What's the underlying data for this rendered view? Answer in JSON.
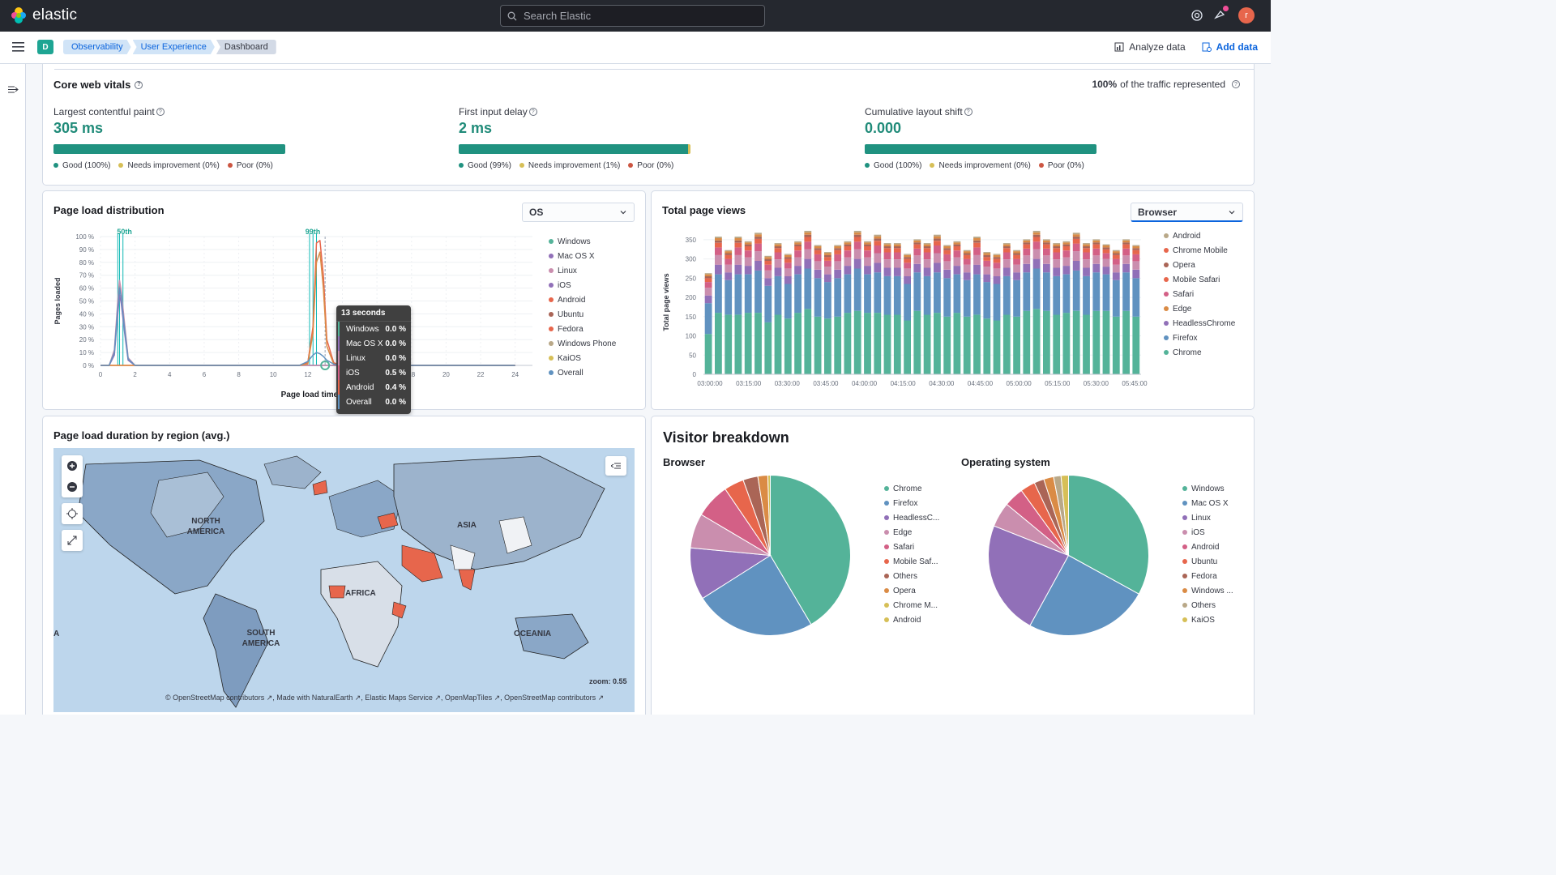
{
  "header": {
    "brand": "elastic",
    "search_placeholder": "Search Elastic",
    "avatar": "r"
  },
  "subnav": {
    "space": "D",
    "crumbs": [
      "Observability",
      "User Experience",
      "Dashboard"
    ],
    "analyze": "Analyze data",
    "add": "Add data"
  },
  "cwv": {
    "title": "Core web vitals",
    "traffic_bold": "100%",
    "traffic_rest": " of the traffic represented",
    "metrics": [
      {
        "label": "Largest contentful paint",
        "value": "305 ms",
        "good": "Good (100%)",
        "ni": "Needs improvement (0%)",
        "poor": "Poor (0%)",
        "good_frac": 1.0,
        "ni_frac": 0.0
      },
      {
        "label": "First input delay",
        "value": "2 ms",
        "good": "Good (99%)",
        "ni": "Needs improvement (1%)",
        "poor": "Poor (0%)",
        "good_frac": 0.99,
        "ni_frac": 0.01
      },
      {
        "label": "Cumulative layout shift",
        "value": "0.000",
        "good": "Good (100%)",
        "ni": "Needs improvement (0%)",
        "poor": "Poor (0%)",
        "good_frac": 1.0,
        "ni_frac": 0.0
      }
    ]
  },
  "pld": {
    "title": "Page load distribution",
    "select": "OS",
    "ylabel": "Pages loaded",
    "xlabel": "Page load time (se",
    "markers": "50th",
    "markers2": "99th",
    "legend": [
      "Windows",
      "Mac OS X",
      "Linux",
      "iOS",
      "Android",
      "Ubuntu",
      "Fedora",
      "Windows Phone",
      "KaiOS",
      "Overall"
    ],
    "tooltip": {
      "title": "13 seconds",
      "rows": [
        [
          "Windows",
          "0.0 %"
        ],
        [
          "Mac OS X",
          "0.0 %"
        ],
        [
          "Linux",
          "0.0 %"
        ],
        [
          "iOS",
          "0.5 %"
        ],
        [
          "Android",
          "0.4 %"
        ],
        [
          "Overall",
          "0.0 %"
        ]
      ]
    }
  },
  "tpv": {
    "title": "Total page views",
    "select": "Browser",
    "ylabel": "Total page views",
    "legend": [
      "Android",
      "Chrome Mobile",
      "Opera",
      "Mobile Safari",
      "Safari",
      "Edge",
      "HeadlessChrome",
      "Firefox",
      "Chrome"
    ]
  },
  "region": {
    "title": "Page load duration by region (avg.)",
    "labels": [
      "NORTH AMERICA",
      "ASIA",
      "AFRICA",
      "SOUTH AMERICA",
      "OCEANIA",
      "A"
    ],
    "zoom": "zoom: 0.55",
    "attribution": "© OpenStreetMap contributors ↗, Made with NaturalEarth ↗, Elastic Maps Service ↗, OpenMapTiles ↗, OpenStreetMap contributors ↗"
  },
  "visitor": {
    "title": "Visitor breakdown",
    "browser_title": "Browser",
    "os_title": "Operating system",
    "browser_legend": [
      "Chrome",
      "Firefox",
      "HeadlessC...",
      "Edge",
      "Safari",
      "Mobile Saf...",
      "Others",
      "Opera",
      "Chrome M...",
      "Android"
    ],
    "os_legend": [
      "Windows",
      "Mac OS X",
      "Linux",
      "iOS",
      "Android",
      "Ubuntu",
      "Fedora",
      "Windows ...",
      "Others",
      "KaiOS"
    ]
  },
  "colors": {
    "c1": "#54b399",
    "c2": "#6092c0",
    "c3": "#d36086",
    "c4": "#9170b8",
    "c5": "#ca8eae",
    "c6": "#d6bf57",
    "c7": "#b9a888",
    "c8": "#da8b45",
    "c9": "#aa6556",
    "c10": "#e7664c"
  },
  "chart_data": [
    {
      "type": "line",
      "title": "Page load distribution",
      "xlabel": "Page load time (se",
      "ylabel": "Pages loaded",
      "x": [
        0,
        0.5,
        0.8,
        1.0,
        1.1,
        1.2,
        1.4,
        1.6,
        2,
        3,
        6,
        10,
        11.5,
        12,
        12.3,
        12.5,
        12.7,
        12.9,
        13.1,
        13.5,
        14,
        24
      ],
      "series": [
        {
          "name": "Windows",
          "values": [
            0,
            0,
            10,
            45,
            62,
            55,
            30,
            5,
            0,
            0,
            0,
            0,
            0,
            0,
            0,
            0,
            0,
            0,
            0,
            0,
            0,
            0
          ]
        },
        {
          "name": "Mac OS X",
          "values": [
            0,
            0,
            8,
            40,
            55,
            48,
            25,
            4,
            0,
            0,
            0,
            0,
            0,
            0,
            0,
            0,
            0,
            0,
            0,
            0,
            0,
            0
          ]
        },
        {
          "name": "Linux",
          "values": [
            0,
            0,
            12,
            50,
            66,
            58,
            32,
            6,
            0,
            0,
            0,
            0,
            0,
            0,
            0,
            0,
            0,
            0,
            0,
            0,
            0,
            0
          ]
        },
        {
          "name": "iOS",
          "values": [
            0,
            0,
            0,
            0,
            0,
            0,
            0,
            0,
            0,
            0,
            0,
            0,
            0,
            2,
            30,
            95,
            97,
            70,
            20,
            2,
            0,
            0
          ]
        },
        {
          "name": "Android",
          "values": [
            0,
            0,
            0,
            0,
            0,
            0,
            0,
            0,
            0,
            0,
            0,
            0,
            0,
            1,
            25,
            80,
            88,
            60,
            15,
            1,
            0,
            0
          ]
        },
        {
          "name": "Overall",
          "values": [
            0,
            0,
            10,
            44,
            60,
            53,
            28,
            5,
            0,
            0,
            0,
            0,
            0,
            3,
            8,
            10,
            9,
            7,
            4,
            1,
            0,
            0
          ]
        }
      ],
      "ylim": [
        0,
        100
      ],
      "xlim": [
        0,
        25
      ]
    },
    {
      "type": "bar",
      "title": "Total page views",
      "ylabel": "Total page views",
      "ylim": [
        0,
        375
      ],
      "x_tick_labels": [
        "03:00:00",
        "03:15:00",
        "03:30:00",
        "03:45:00",
        "04:00:00",
        "04:15:00",
        "04:30:00",
        "04:45:00",
        "05:00:00",
        "05:15:00",
        "05:30:00",
        "05:45:00"
      ],
      "stacked": true,
      "bar_count": 44,
      "series": [
        {
          "name": "Chrome",
          "values": [
            105,
            160,
            155,
            155,
            160,
            160,
            135,
            155,
            145,
            160,
            170,
            150,
            145,
            150,
            160,
            165,
            160,
            160,
            155,
            155,
            140,
            165,
            155,
            160,
            150,
            160,
            150,
            155,
            145,
            140,
            155,
            150,
            165,
            170,
            165,
            155,
            160,
            165,
            155,
            165,
            165,
            150,
            165,
            150
          ]
        },
        {
          "name": "Firefox",
          "values": [
            80,
            100,
            90,
            105,
            100,
            110,
            95,
            100,
            90,
            100,
            105,
            100,
            95,
            100,
            100,
            110,
            100,
            105,
            100,
            100,
            95,
            100,
            100,
            105,
            100,
            100,
            95,
            105,
            95,
            95,
            100,
            95,
            100,
            105,
            100,
            100,
            100,
            105,
            100,
            100,
            95,
            95,
            100,
            100
          ]
        },
        {
          "name": "HeadlessChrome",
          "values": [
            20,
            25,
            20,
            25,
            22,
            25,
            20,
            22,
            20,
            22,
            25,
            22,
            20,
            22,
            22,
            25,
            22,
            25,
            22,
            22,
            20,
            22,
            22,
            25,
            22,
            22,
            20,
            25,
            20,
            20,
            22,
            20,
            22,
            25,
            22,
            22,
            22,
            25,
            22,
            22,
            20,
            20,
            22,
            22
          ]
        },
        {
          "name": "Edge",
          "values": [
            20,
            25,
            20,
            25,
            22,
            25,
            20,
            22,
            20,
            22,
            25,
            22,
            20,
            22,
            22,
            25,
            22,
            25,
            22,
            22,
            20,
            22,
            22,
            25,
            22,
            22,
            20,
            25,
            20,
            20,
            22,
            20,
            22,
            25,
            22,
            22,
            22,
            25,
            22,
            22,
            20,
            20,
            22,
            22
          ]
        },
        {
          "name": "Safari",
          "values": [
            15,
            20,
            15,
            20,
            18,
            20,
            15,
            18,
            15,
            18,
            20,
            18,
            15,
            18,
            18,
            20,
            18,
            20,
            18,
            18,
            15,
            18,
            18,
            20,
            18,
            18,
            15,
            20,
            15,
            15,
            18,
            15,
            18,
            20,
            18,
            18,
            18,
            20,
            18,
            18,
            15,
            15,
            18,
            18
          ]
        },
        {
          "name": "Mobile Safari",
          "values": [
            10,
            12,
            10,
            12,
            11,
            12,
            10,
            11,
            10,
            11,
            12,
            11,
            10,
            11,
            11,
            12,
            11,
            12,
            11,
            11,
            10,
            11,
            11,
            12,
            11,
            11,
            10,
            12,
            10,
            10,
            11,
            10,
            11,
            12,
            11,
            11,
            11,
            12,
            11,
            11,
            10,
            10,
            11,
            11
          ]
        },
        {
          "name": "Opera",
          "values": [
            5,
            6,
            5,
            6,
            5,
            6,
            5,
            5,
            5,
            5,
            6,
            5,
            5,
            5,
            5,
            6,
            5,
            6,
            5,
            5,
            5,
            5,
            5,
            6,
            5,
            5,
            5,
            6,
            5,
            5,
            5,
            5,
            5,
            6,
            5,
            5,
            5,
            6,
            5,
            5,
            5,
            5,
            5,
            5
          ]
        },
        {
          "name": "Chrome Mobile",
          "values": [
            5,
            6,
            5,
            6,
            5,
            6,
            5,
            5,
            5,
            5,
            6,
            5,
            5,
            5,
            5,
            6,
            5,
            6,
            5,
            5,
            5,
            5,
            5,
            6,
            5,
            5,
            5,
            6,
            5,
            5,
            5,
            5,
            5,
            6,
            5,
            5,
            5,
            6,
            5,
            5,
            5,
            5,
            5,
            5
          ]
        },
        {
          "name": "Android",
          "values": [
            3,
            4,
            3,
            4,
            3,
            4,
            3,
            3,
            3,
            3,
            4,
            3,
            3,
            3,
            3,
            4,
            3,
            4,
            3,
            3,
            3,
            3,
            3,
            4,
            3,
            3,
            3,
            4,
            3,
            3,
            3,
            3,
            3,
            4,
            3,
            3,
            3,
            4,
            3,
            3,
            3,
            3,
            3,
            3
          ]
        }
      ]
    },
    {
      "type": "pie",
      "title": "Browser",
      "categories": [
        "Chrome",
        "Firefox",
        "HeadlessC...",
        "Edge",
        "Safari",
        "Mobile Saf...",
        "Others",
        "Opera",
        "Chrome M...",
        "Android"
      ],
      "values": [
        41.5,
        24.5,
        10.5,
        7,
        7,
        4,
        3,
        2,
        0.5,
        0
      ]
    },
    {
      "type": "pie",
      "title": "Operating system",
      "categories": [
        "Windows",
        "Mac OS X",
        "Linux",
        "iOS",
        "Android",
        "Ubuntu",
        "Fedora",
        "Windows ...",
        "Others",
        "KaiOS"
      ],
      "values": [
        33,
        25,
        23,
        5,
        4,
        3,
        2,
        2,
        1.5,
        1.5
      ]
    }
  ]
}
